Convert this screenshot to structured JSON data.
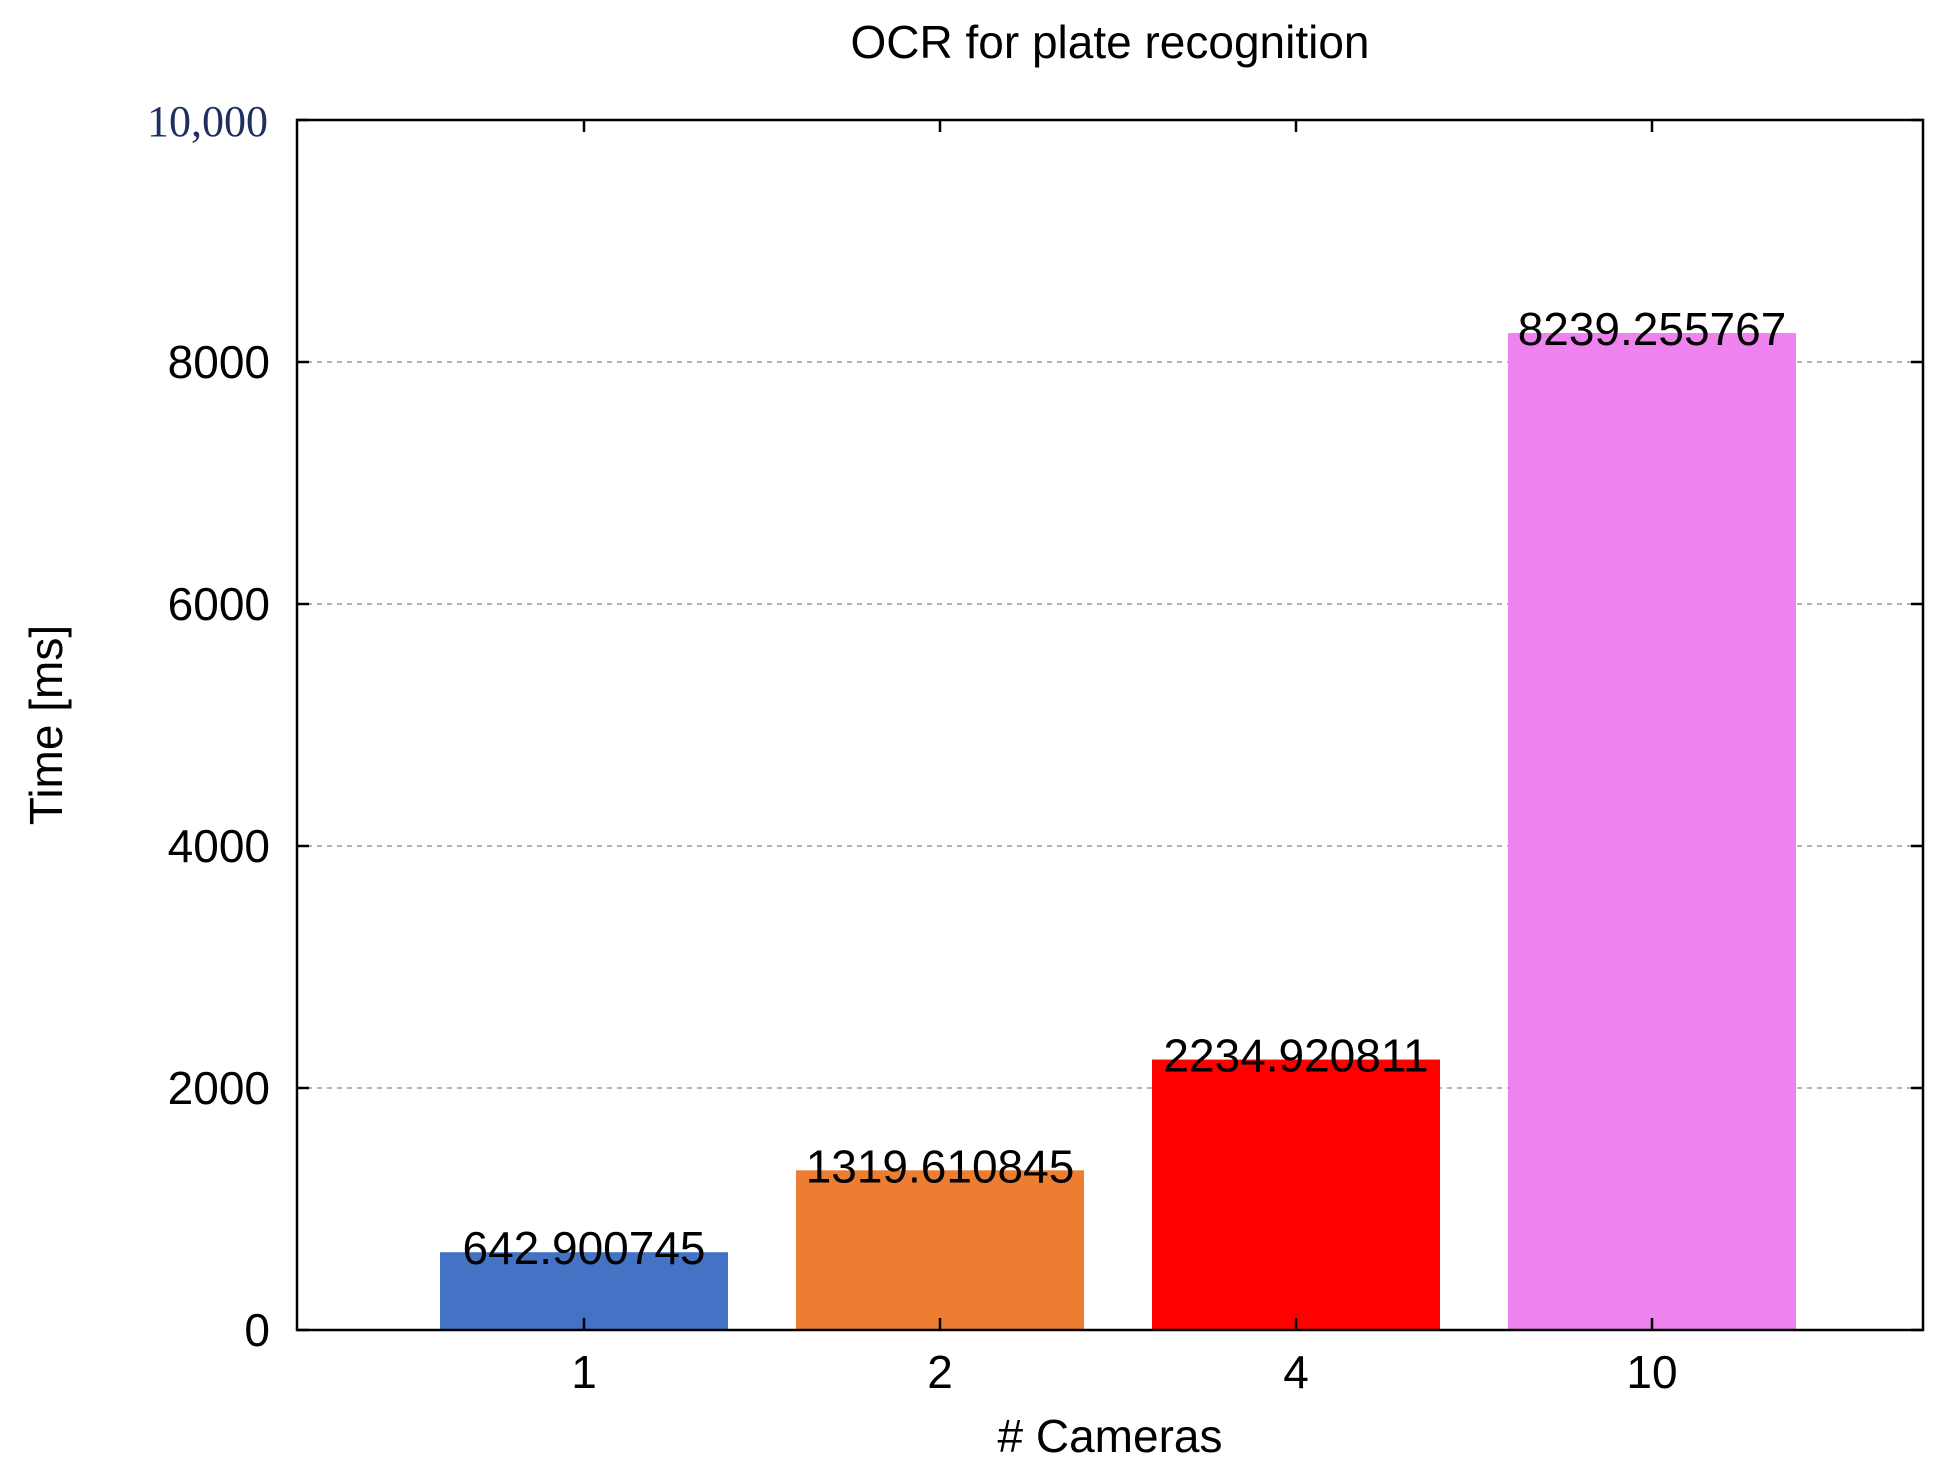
{
  "chart_data": {
    "type": "bar",
    "title": "OCR for plate recognition",
    "xlabel": "# Cameras",
    "ylabel": "Time [ms]",
    "categories": [
      "1",
      "2",
      "4",
      "10"
    ],
    "values": [
      642.900745,
      1319.610845,
      2234.920811,
      8239.255767
    ],
    "data_labels": [
      "642.900745",
      "1319.610845",
      "2234.920811",
      "8239.255767"
    ],
    "colors": [
      "#4472c4",
      "#ed7d31",
      "#ff0000",
      "#ee82ee"
    ],
    "ylim": [
      0,
      10000
    ],
    "yticks": [
      0,
      2000,
      4000,
      6000,
      8000,
      10000
    ],
    "ytick_labels": [
      "0",
      "2000",
      "4000",
      "6000",
      "8000",
      "10,000"
    ],
    "grid": true,
    "legend": "none"
  }
}
